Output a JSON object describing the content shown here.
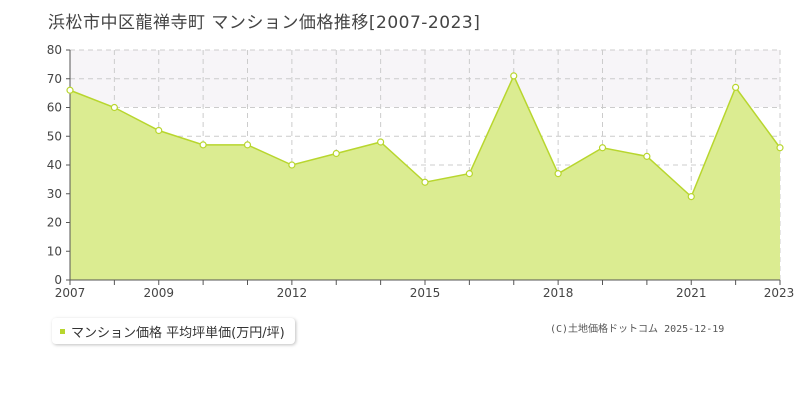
{
  "chart_data": {
    "type": "area",
    "title": "浜松市中区龍禅寺町 マンション価格推移[2007-2023]",
    "x": [
      2007,
      2008,
      2009,
      2010,
      2011,
      2012,
      2013,
      2014,
      2015,
      2016,
      2017,
      2018,
      2019,
      2020,
      2021,
      2022,
      2023
    ],
    "x_tick_labels": [
      "2007",
      "2009",
      "2012",
      "2015",
      "2018",
      "2021",
      "2023"
    ],
    "x_tick_values": [
      2007,
      2009,
      2012,
      2015,
      2018,
      2021,
      2023
    ],
    "y_ticks": [
      0,
      10,
      20,
      30,
      40,
      50,
      60,
      70,
      80
    ],
    "ylim": [
      0,
      80
    ],
    "xlim": [
      2007,
      2023
    ],
    "grid": true,
    "series": [
      {
        "name": "マンション価格 平均坪単価(万円/坪)",
        "values": [
          66,
          60,
          52,
          47,
          47,
          40,
          44,
          48,
          34,
          37,
          71,
          37,
          46,
          43,
          29,
          67,
          46
        ],
        "color": "#b8d62e",
        "fill": "#dbec91"
      }
    ]
  },
  "legend": {
    "label": "マンション価格 平均坪単価(万円/坪)",
    "position": "bottom-left"
  },
  "credit": "(C)土地価格ドットコム 2025-12-19"
}
